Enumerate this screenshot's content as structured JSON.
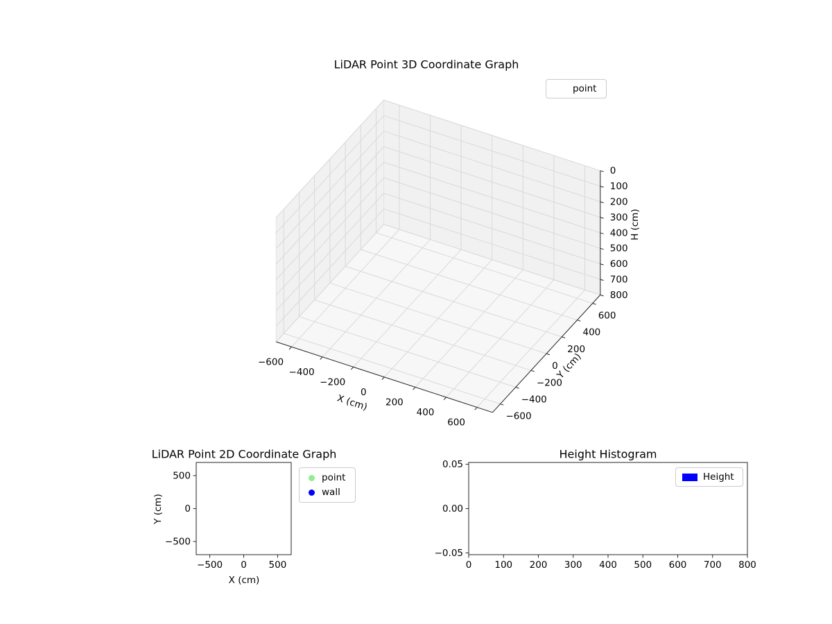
{
  "figure": {
    "background": "#ffffff"
  },
  "chart_data": [
    {
      "id": "plot3d",
      "type": "scatter3d",
      "title": "LiDAR Point 3D Coordinate Graph",
      "xlabel": "X (cm)",
      "ylabel": "Y (cm)",
      "zlabel": "H (cm)",
      "xlim": [
        -700,
        700
      ],
      "ylim": [
        -700,
        700
      ],
      "zlim": [
        0,
        800
      ],
      "z_axis_inverted": true,
      "grid": true,
      "xticks": [
        -600,
        -400,
        -200,
        0,
        200,
        400,
        600
      ],
      "xtick_labels": [
        "−600",
        "−400",
        "−200",
        "0",
        "200",
        "400",
        "600"
      ],
      "yticks": [
        -600,
        -400,
        -200,
        0,
        200,
        400,
        600
      ],
      "ytick_labels": [
        "−600",
        "−400",
        "−200",
        "0",
        "200",
        "400",
        "600"
      ],
      "zticks": [
        0,
        100,
        200,
        300,
        400,
        500,
        600,
        700,
        800
      ],
      "ztick_labels": [
        "0",
        "100",
        "200",
        "300",
        "400",
        "500",
        "600",
        "700",
        "800"
      ],
      "legend": [
        {
          "label": "point",
          "marker_color": "none"
        }
      ],
      "legend_position": "upper right outside",
      "series": [
        {
          "name": "point",
          "points": []
        }
      ]
    },
    {
      "id": "plot2d",
      "type": "scatter",
      "title": "LiDAR Point 2D Coordinate Graph",
      "xlabel": "X (cm)",
      "ylabel": "Y (cm)",
      "xlim": [
        -700,
        700
      ],
      "ylim": [
        -700,
        700
      ],
      "grid": false,
      "xticks": [
        -500,
        0,
        500
      ],
      "xtick_labels": [
        "−500",
        "0",
        "500"
      ],
      "yticks": [
        -500,
        0,
        500
      ],
      "ytick_labels": [
        "−500",
        "0",
        "500"
      ],
      "legend": [
        {
          "label": "point",
          "marker_color": "#90ee90",
          "marker": "circle"
        },
        {
          "label": "wall",
          "marker_color": "#0000ff",
          "marker": "circle"
        }
      ],
      "legend_position": "right outside",
      "series": [
        {
          "name": "point",
          "points": []
        },
        {
          "name": "wall",
          "points": []
        }
      ]
    },
    {
      "id": "histogram",
      "type": "bar",
      "title": "Height Histogram",
      "xlabel": "",
      "ylabel": "",
      "xlim": [
        0,
        800
      ],
      "ylim": [
        -0.052,
        0.052
      ],
      "grid": false,
      "xticks": [
        0,
        100,
        200,
        300,
        400,
        500,
        600,
        700,
        800
      ],
      "xtick_labels": [
        "0",
        "100",
        "200",
        "300",
        "400",
        "500",
        "600",
        "700",
        "800"
      ],
      "yticks": [
        -0.05,
        0,
        0.05
      ],
      "ytick_labels": [
        "−0.05",
        "0.00",
        "0.05"
      ],
      "legend": [
        {
          "label": "Height",
          "marker_color": "#0000ff",
          "marker": "rect"
        }
      ],
      "legend_position": "upper right inside",
      "values": []
    }
  ]
}
